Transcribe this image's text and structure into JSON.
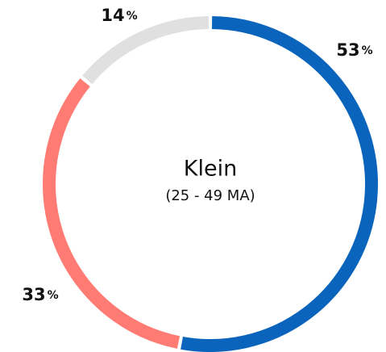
{
  "chart_data": {
    "type": "donut",
    "title": "Klein",
    "subtitle": "(25 - 49 MA)",
    "categories": [
      null,
      null,
      null
    ],
    "values": [
      53,
      33,
      14
    ],
    "value_labels": [
      "53%",
      "33%",
      "14%"
    ],
    "colors": [
      "#0a64bc",
      "#ff7b73",
      "#e0e0e0"
    ]
  }
}
